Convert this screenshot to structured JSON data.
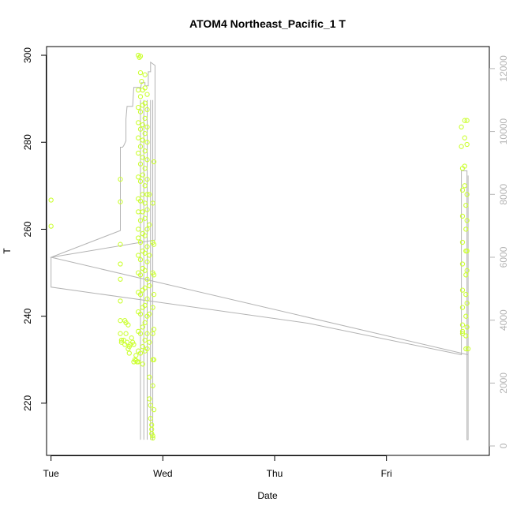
{
  "chart_data": {
    "type": "scatter",
    "title": "ATOM4 Northeast_Pacific_1 T",
    "xlabel": "Date",
    "ylabel": "T",
    "x_ticks": [
      "Tue",
      "Wed",
      "Thu",
      "Fri"
    ],
    "x_tick_values": [
      0,
      1,
      2,
      3
    ],
    "xlim": [
      -0.04,
      3.92
    ],
    "y_ticks": [
      220,
      240,
      260,
      280,
      300
    ],
    "ylim": [
      208,
      302
    ],
    "y2_ticks": [
      0,
      2000,
      4000,
      6000,
      8000,
      10000,
      12000
    ],
    "y2lim": [
      -300,
      12700
    ],
    "grid": false,
    "series": [
      {
        "kind": "points",
        "color": "#ccff33",
        "points": [
          [
            0.0,
            266.7
          ],
          [
            0.0,
            260.7
          ],
          [
            0.62,
            271.5
          ],
          [
            0.62,
            266.3
          ],
          [
            0.62,
            256.5
          ],
          [
            0.62,
            252.0
          ],
          [
            0.62,
            248.5
          ],
          [
            0.62,
            243.5
          ],
          [
            0.62,
            239.0
          ],
          [
            0.62,
            236.0
          ],
          [
            0.63,
            234.5
          ],
          [
            0.63,
            234.0
          ],
          [
            0.65,
            234.5
          ],
          [
            0.66,
            233.5
          ],
          [
            0.66,
            239.0
          ],
          [
            0.67,
            238.5
          ],
          [
            0.67,
            236.0
          ],
          [
            0.68,
            234.0
          ],
          [
            0.69,
            232.5
          ],
          [
            0.69,
            238.0
          ],
          [
            0.7,
            231.5
          ],
          [
            0.7,
            233.0
          ],
          [
            0.71,
            233.5
          ],
          [
            0.72,
            235.0
          ],
          [
            0.73,
            234.0
          ],
          [
            0.74,
            233.5
          ],
          [
            0.74,
            229.5
          ],
          [
            0.75,
            230.0
          ],
          [
            0.76,
            229.8
          ],
          [
            0.76,
            231.0
          ],
          [
            0.77,
            229.5
          ],
          [
            0.78,
            300.0
          ],
          [
            0.79,
            299.5
          ],
          [
            0.8,
            299.8
          ],
          [
            0.8,
            296.0
          ],
          [
            0.81,
            294.0
          ],
          [
            0.78,
            292.0
          ],
          [
            0.78,
            288.0
          ],
          [
            0.78,
            284.5
          ],
          [
            0.78,
            281.0
          ],
          [
            0.78,
            277.5
          ],
          [
            0.78,
            272.0
          ],
          [
            0.78,
            267.0
          ],
          [
            0.78,
            264.0
          ],
          [
            0.78,
            260.0
          ],
          [
            0.78,
            258.0
          ],
          [
            0.78,
            254.0
          ],
          [
            0.78,
            250.0
          ],
          [
            0.78,
            245.5
          ],
          [
            0.78,
            241.0
          ],
          [
            0.78,
            236.5
          ],
          [
            0.78,
            232.0
          ],
          [
            0.78,
            229.5
          ],
          [
            0.8,
            290.5
          ],
          [
            0.8,
            287.0
          ],
          [
            0.8,
            283.0
          ],
          [
            0.8,
            279.0
          ],
          [
            0.8,
            275.0
          ],
          [
            0.8,
            271.0
          ],
          [
            0.8,
            266.5
          ],
          [
            0.8,
            262.0
          ],
          [
            0.8,
            257.0
          ],
          [
            0.8,
            253.0
          ],
          [
            0.8,
            249.5
          ],
          [
            0.8,
            245.0
          ],
          [
            0.8,
            240.5
          ],
          [
            0.8,
            236.0
          ],
          [
            0.8,
            231.5
          ],
          [
            0.82,
            292.0
          ],
          [
            0.82,
            288.5
          ],
          [
            0.82,
            284.0
          ],
          [
            0.82,
            280.5
          ],
          [
            0.82,
            276.5
          ],
          [
            0.82,
            272.5
          ],
          [
            0.82,
            268.0
          ],
          [
            0.82,
            264.0
          ],
          [
            0.82,
            259.0
          ],
          [
            0.82,
            255.0
          ],
          [
            0.82,
            251.0
          ],
          [
            0.82,
            246.0
          ],
          [
            0.82,
            242.0
          ],
          [
            0.82,
            237.5
          ],
          [
            0.82,
            233.0
          ],
          [
            0.82,
            229.0
          ],
          [
            0.84,
            295.5
          ],
          [
            0.84,
            292.5
          ],
          [
            0.84,
            289.0
          ],
          [
            0.84,
            285.5
          ],
          [
            0.84,
            282.0
          ],
          [
            0.84,
            278.0
          ],
          [
            0.84,
            274.0
          ],
          [
            0.84,
            270.0
          ],
          [
            0.84,
            266.0
          ],
          [
            0.84,
            262.5
          ],
          [
            0.84,
            258.5
          ],
          [
            0.84,
            254.5
          ],
          [
            0.84,
            250.5
          ],
          [
            0.84,
            246.5
          ],
          [
            0.84,
            242.5
          ],
          [
            0.84,
            238.5
          ],
          [
            0.84,
            234.5
          ],
          [
            0.84,
            232.0
          ],
          [
            0.86,
            291.0
          ],
          [
            0.86,
            287.5
          ],
          [
            0.86,
            283.5
          ],
          [
            0.86,
            280.0
          ],
          [
            0.86,
            276.0
          ],
          [
            0.86,
            271.5
          ],
          [
            0.86,
            268.0
          ],
          [
            0.86,
            264.5
          ],
          [
            0.86,
            260.0
          ],
          [
            0.86,
            256.0
          ],
          [
            0.86,
            252.5
          ],
          [
            0.86,
            248.5
          ],
          [
            0.86,
            244.0
          ],
          [
            0.86,
            240.0
          ],
          [
            0.86,
            236.0
          ],
          [
            0.86,
            232.5
          ],
          [
            0.88,
            268.0
          ],
          [
            0.88,
            261.0
          ],
          [
            0.88,
            254.0
          ],
          [
            0.88,
            247.0
          ],
          [
            0.88,
            240.5
          ],
          [
            0.88,
            234.0
          ],
          [
            0.88,
            226.0
          ],
          [
            0.88,
            221.0
          ],
          [
            0.89,
            219.5
          ],
          [
            0.89,
            216.5
          ],
          [
            0.9,
            215.0
          ],
          [
            0.9,
            214.0
          ],
          [
            0.9,
            213.0
          ],
          [
            0.91,
            212.0
          ],
          [
            0.91,
            212.5
          ],
          [
            0.91,
            266.0
          ],
          [
            0.91,
            257.0
          ],
          [
            0.91,
            250.0
          ],
          [
            0.91,
            242.0
          ],
          [
            0.91,
            236.0
          ],
          [
            0.91,
            230.0
          ],
          [
            0.91,
            224.0
          ],
          [
            0.92,
            275.5
          ],
          [
            0.92,
            256.5
          ],
          [
            0.92,
            249.5
          ],
          [
            0.92,
            245.0
          ],
          [
            0.92,
            237.0
          ],
          [
            0.92,
            230.0
          ],
          [
            0.92,
            218.5
          ],
          [
            3.67,
            283.5
          ],
          [
            3.67,
            279.0
          ],
          [
            3.68,
            274.0
          ],
          [
            3.68,
            269.0
          ],
          [
            3.68,
            263.0
          ],
          [
            3.68,
            257.0
          ],
          [
            3.68,
            252.0
          ],
          [
            3.68,
            246.0
          ],
          [
            3.68,
            242.0
          ],
          [
            3.68,
            238.0
          ],
          [
            3.68,
            236.0
          ],
          [
            3.68,
            236.5
          ],
          [
            3.7,
            285.0
          ],
          [
            3.7,
            281.0
          ],
          [
            3.7,
            274.5
          ],
          [
            3.7,
            270.0
          ],
          [
            3.71,
            265.5
          ],
          [
            3.71,
            260.0
          ],
          [
            3.71,
            255.0
          ],
          [
            3.71,
            249.5
          ],
          [
            3.71,
            245.0
          ],
          [
            3.71,
            240.0
          ],
          [
            3.71,
            235.5
          ],
          [
            3.71,
            232.5
          ],
          [
            3.72,
            285.0
          ],
          [
            3.72,
            279.5
          ],
          [
            3.72,
            268.0
          ],
          [
            3.72,
            262.0
          ],
          [
            3.72,
            255.0
          ],
          [
            3.72,
            250.5
          ],
          [
            3.72,
            243.0
          ],
          [
            3.72,
            237.5
          ],
          [
            3.73,
            232.5
          ]
        ]
      },
      {
        "kind": "line",
        "axis": "right",
        "color": "#b3b3b3",
        "path": [
          [
            0.0,
            6000
          ],
          [
            0.0,
            5050
          ],
          [
            2.3,
            3900
          ],
          [
            3.67,
            2900
          ],
          [
            3.67,
            3200
          ],
          [
            3.67,
            8750
          ],
          [
            3.72,
            8750
          ],
          [
            3.72,
            200
          ],
          [
            3.73,
            200
          ],
          [
            3.73,
            8600
          ],
          [
            3.73,
            2900
          ],
          [
            0.0,
            6000
          ],
          [
            0.62,
            6850
          ],
          [
            0.62,
            9500
          ],
          [
            0.62,
            9500
          ],
          [
            0.64,
            9500
          ],
          [
            0.65,
            9550
          ],
          [
            0.67,
            9700
          ],
          [
            0.67,
            10400
          ],
          [
            0.68,
            10800
          ],
          [
            0.73,
            10800
          ],
          [
            0.74,
            11400
          ],
          [
            0.8,
            11400
          ],
          [
            0.8,
            11350
          ],
          [
            0.81,
            11550
          ],
          [
            0.84,
            11550
          ],
          [
            0.84,
            11450
          ],
          [
            0.87,
            11450
          ],
          [
            0.87,
            11900
          ],
          [
            0.89,
            11900
          ],
          [
            0.89,
            12200
          ],
          [
            0.93,
            12100
          ],
          [
            0.93,
            6550
          ],
          [
            0.0,
            6000
          ]
        ],
        "drops": [
          0.8,
          0.83,
          0.86,
          0.89,
          0.91
        ]
      }
    ]
  }
}
